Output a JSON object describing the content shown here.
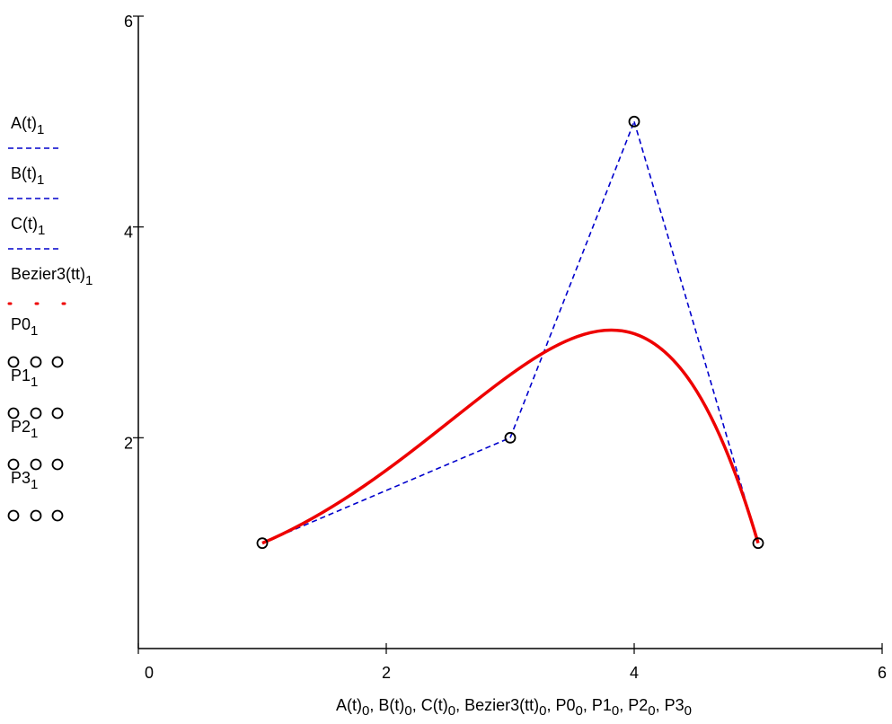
{
  "chart_data": {
    "type": "line",
    "xlabel": {
      "text": "A(t)₀, B(t)₀, C(t)₀, Bezier3(tt)₀, P0₀, P1₀, P2₀, P3₀"
    },
    "xlim": [
      0,
      6
    ],
    "ylim": [
      0,
      6
    ],
    "xticks": [
      0,
      2,
      4,
      6
    ],
    "yticks": [
      2,
      4,
      6
    ],
    "grid": false,
    "legend_position": "left",
    "series": [
      {
        "name": "A(t)",
        "sub": "1",
        "style": "dashed",
        "color": "#0000cc",
        "marker": "none",
        "points": [
          [
            1,
            1
          ],
          [
            3,
            2
          ]
        ]
      },
      {
        "name": "B(t)",
        "sub": "1",
        "style": "dashed",
        "color": "#0000cc",
        "marker": "none",
        "points": [
          [
            3,
            2
          ],
          [
            4,
            5
          ]
        ]
      },
      {
        "name": "C(t)",
        "sub": "1",
        "style": "dashed",
        "color": "#0000cc",
        "marker": "none",
        "points": [
          [
            4,
            5
          ],
          [
            5,
            1
          ]
        ]
      },
      {
        "name": "Bezier3(tt)",
        "sub": "1",
        "style": "solid",
        "color": "#ee0000",
        "marker": "none",
        "control_points": [
          [
            1,
            1
          ],
          [
            3,
            2
          ],
          [
            4,
            5
          ],
          [
            5,
            1
          ]
        ]
      },
      {
        "name": "P0",
        "sub": "1",
        "style": "marker",
        "color": "#000000",
        "marker": "circle",
        "points": [
          [
            1,
            1
          ]
        ]
      },
      {
        "name": "P1",
        "sub": "1",
        "style": "marker",
        "color": "#000000",
        "marker": "circle",
        "points": [
          [
            3,
            2
          ]
        ]
      },
      {
        "name": "P2",
        "sub": "1",
        "style": "marker",
        "color": "#000000",
        "marker": "circle",
        "points": [
          [
            4,
            5
          ]
        ]
      },
      {
        "name": "P3",
        "sub": "1",
        "style": "marker",
        "color": "#000000",
        "marker": "circle",
        "points": [
          [
            5,
            1
          ]
        ]
      }
    ]
  }
}
